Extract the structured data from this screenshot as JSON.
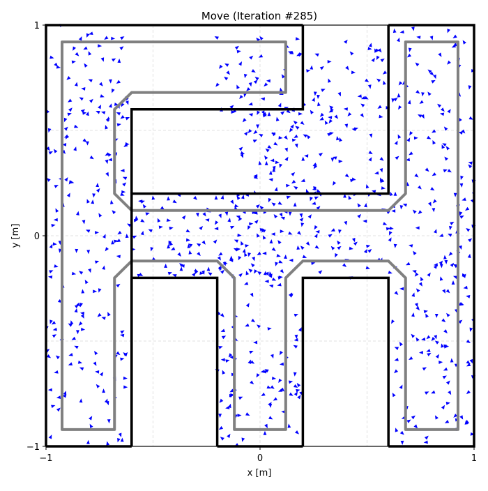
{
  "chart_data": {
    "type": "quiver",
    "title": "Move (Iteration #285)",
    "xlabel": "x [m]",
    "ylabel": "y [m]",
    "xlim": [
      -1,
      1
    ],
    "ylim": [
      -1,
      1
    ],
    "xticks": [
      {
        "value": -1,
        "label": "−1"
      },
      {
        "value": 0,
        "label": "0"
      },
      {
        "value": 1,
        "label": "1"
      }
    ],
    "yticks": [
      {
        "value": -1,
        "label": "−1"
      },
      {
        "value": 0,
        "label": "0"
      },
      {
        "value": 1,
        "label": "1"
      }
    ],
    "grid": true,
    "colors": {
      "particles": "#0000ff",
      "walls": "#000000",
      "safe_boundary": "#808080",
      "grid": "#d9d9d9"
    },
    "walls": [
      [
        [
          -0.6,
          -1.0
        ],
        [
          -0.6,
          0.2
        ],
        [
          0.6,
          0.2
        ],
        [
          0.6,
          1.0
        ]
      ],
      [
        [
          0.2,
          1.0
        ],
        [
          0.2,
          0.6
        ],
        [
          -0.6,
          0.6
        ],
        [
          -0.6,
          0.2
        ]
      ],
      [
        [
          -0.2,
          -1.0
        ],
        [
          -0.2,
          -0.2
        ],
        [
          -0.6,
          -0.2
        ],
        [
          -0.6,
          -1.0
        ]
      ],
      [
        [
          0.2,
          -1.0
        ],
        [
          0.2,
          -0.2
        ],
        [
          0.6,
          -0.2
        ],
        [
          0.6,
          -1.0
        ]
      ],
      [
        [
          0.6,
          -1.0
        ],
        [
          1.0,
          -1.0
        ],
        [
          1.0,
          1.0
        ],
        [
          0.6,
          1.0
        ]
      ],
      [
        [
          -1.0,
          -1.0
        ],
        [
          -0.6,
          -1.0
        ]
      ],
      [
        [
          -0.2,
          -1.0
        ],
        [
          0.2,
          -1.0
        ]
      ],
      [
        [
          -1.0,
          -1.0
        ],
        [
          -1.0,
          1.0
        ],
        [
          0.2,
          1.0
        ]
      ]
    ],
    "safe_boundary_polygons": [
      [
        [
          -0.925,
          -0.92
        ],
        [
          -0.925,
          0.92
        ],
        [
          0.12,
          0.92
        ],
        [
          0.12,
          0.68
        ],
        [
          -0.6,
          0.68
        ],
        [
          -0.68,
          0.6
        ],
        [
          -0.68,
          0.2
        ],
        [
          -0.6,
          0.12
        ],
        [
          0.6,
          0.12
        ],
        [
          0.68,
          0.2
        ],
        [
          0.68,
          0.92
        ],
        [
          0.925,
          0.92
        ],
        [
          0.925,
          -0.92
        ],
        [
          0.68,
          -0.92
        ],
        [
          0.68,
          -0.2
        ],
        [
          0.6,
          -0.12
        ],
        [
          0.2,
          -0.12
        ],
        [
          0.12,
          -0.2
        ],
        [
          0.12,
          -0.92
        ],
        [
          -0.12,
          -0.92
        ],
        [
          -0.12,
          -0.2
        ],
        [
          -0.2,
          -0.12
        ],
        [
          -0.6,
          -0.12
        ],
        [
          -0.68,
          -0.2
        ],
        [
          -0.68,
          -0.92
        ]
      ]
    ],
    "particles": {
      "count": 900,
      "arrow_length": 0.016,
      "clusters": [
        {
          "x_range": [
            -1.0,
            -0.62
          ],
          "y_range": [
            -1.0,
            1.0
          ],
          "weight": 0.22
        },
        {
          "x_range": [
            -0.62,
            0.62
          ],
          "y_range": [
            -0.2,
            0.2
          ],
          "weight": 0.22
        },
        {
          "x_range": [
            -0.2,
            0.2
          ],
          "y_range": [
            -1.0,
            0.2
          ],
          "weight": 0.12
        },
        {
          "x_range": [
            -0.2,
            0.6
          ],
          "y_range": [
            0.55,
            0.95
          ],
          "weight": 0.12
        },
        {
          "x_range": [
            -0.1,
            0.58
          ],
          "y_range": [
            0.2,
            0.62
          ],
          "weight": 0.1
        },
        {
          "x_range": [
            0.62,
            1.0
          ],
          "y_range": [
            -1.0,
            1.0
          ],
          "weight": 0.22
        }
      ]
    }
  }
}
